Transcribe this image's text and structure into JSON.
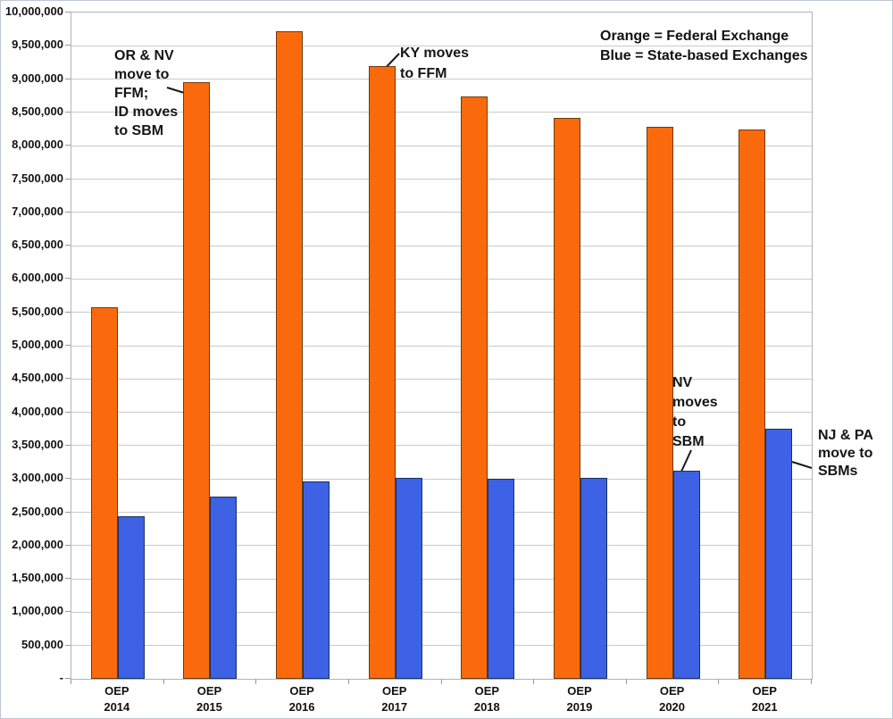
{
  "chart_data": {
    "type": "bar",
    "title": "",
    "xlabel": "",
    "ylabel": "",
    "categories": [
      {
        "line1": "OEP",
        "line2": "2014"
      },
      {
        "line1": "OEP",
        "line2": "2015"
      },
      {
        "line1": "OEP",
        "line2": "2016"
      },
      {
        "line1": "OEP",
        "line2": "2017"
      },
      {
        "line1": "OEP",
        "line2": "2018"
      },
      {
        "line1": "OEP",
        "line2": "2019"
      },
      {
        "line1": "OEP",
        "line2": "2020"
      },
      {
        "line1": "OEP",
        "line2": "2021"
      }
    ],
    "series": [
      {
        "name": "Federal Exchange",
        "color": "#fa6a0d",
        "border_color": "#6e3a0e",
        "values": [
          5580000,
          8950000,
          9720000,
          9200000,
          8740000,
          8420000,
          8280000,
          8240000
        ]
      },
      {
        "name": "State-based Exchanges",
        "color": "#3d62e6",
        "border_color": "#17315e",
        "values": [
          2440000,
          2730000,
          2960000,
          3020000,
          3000000,
          3020000,
          3130000,
          3760000
        ]
      }
    ],
    "ylim": [
      0,
      10000000
    ],
    "y_tick_step": 500000,
    "y_tick_labels_top_to_bottom": [
      "10,000,000",
      "9,500,000",
      "9,000,000",
      "8,500,000",
      "8,000,000",
      "7,500,000",
      "7,000,000",
      "6,500,000",
      "6,000,000",
      "5,500,000",
      "5,000,000",
      "4,500,000",
      "4,000,000",
      "3,500,000",
      "3,000,000",
      "2,500,000",
      "2,000,000",
      "1,500,000",
      "1,000,000",
      "500,000",
      "-"
    ],
    "grid": true,
    "legend_position": "top-right"
  },
  "legend": {
    "line1": "Orange = Federal Exchange",
    "line2": "Blue = State-based Exchanges"
  },
  "annotations": [
    {
      "id": "or-nv-ffm",
      "text": "OR & NV\nmove to\nFFM;\nID moves\nto SBM"
    },
    {
      "id": "ky-ffm",
      "text": "KY moves\nto FFM"
    },
    {
      "id": "nv-sbm",
      "text": "NV\nmoves\nto\nSBM"
    },
    {
      "id": "nj-pa-sbm",
      "text": "NJ & PA\nmove to\nSBMs"
    }
  ],
  "colors": {
    "federal_bar": "#fa6a0d",
    "state_bar": "#3d62e6",
    "gridline": "#c9c9c9",
    "text": "#111111"
  }
}
